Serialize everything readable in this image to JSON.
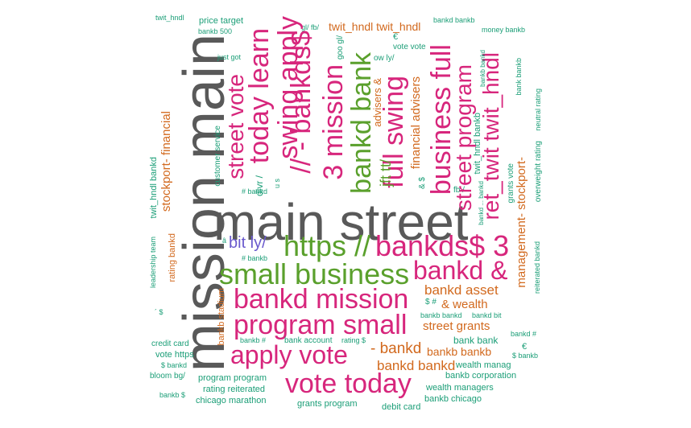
{
  "colors": {
    "gray": "#595959",
    "magenta": "#d7267c",
    "green": "#5aa02c",
    "orange": "#d2691e",
    "teal": "#1b9e77",
    "purple": "#6a5acd"
  },
  "words": [
    {
      "text": "main street",
      "color": "gray"
    },
    {
      "text": "mission main",
      "color": "gray"
    },
    {
      "text": "small business",
      "color": "green"
    },
    {
      "text": "https //",
      "color": "green"
    },
    {
      "text": "bankds$ 3",
      "color": "magenta"
    },
    {
      "text": "bankd mission",
      "color": "magenta"
    },
    {
      "text": "program small",
      "color": "magenta"
    },
    {
      "text": "apply vote",
      "color": "magenta"
    },
    {
      "text": "vote today",
      "color": "magenta"
    },
    {
      "text": "bankd &",
      "color": "magenta"
    },
    {
      "text": "bit ly/",
      "color": "purple"
    },
    {
      "text": "bankd asset",
      "color": "orange"
    },
    {
      "text": "& wealth",
      "color": "orange"
    },
    {
      "text": "street grants",
      "color": "orange"
    },
    {
      "text": "- bankd",
      "color": "orange"
    },
    {
      "text": "bankd bankd",
      "color": "orange"
    },
    {
      "text": "bankb bankb",
      "color": "orange"
    },
    {
      "text": "twit_hndl twit_hndl",
      "color": "orange"
    },
    {
      "text": "bank bank",
      "color": "teal"
    },
    {
      "text": "wealth manag",
      "color": "teal"
    },
    {
      "text": "bankb corporation",
      "color": "teal"
    },
    {
      "text": "wealth managers",
      "color": "teal"
    },
    {
      "text": "bankb chicago",
      "color": "teal"
    },
    {
      "text": "debit card",
      "color": "teal"
    },
    {
      "text": "grants program",
      "color": "teal"
    },
    {
      "text": "chicago marathon",
      "color": "teal"
    },
    {
      "text": "rating reiterated",
      "color": "teal"
    },
    {
      "text": "program program",
      "color": "teal"
    },
    {
      "text": "bloom bg/",
      "color": "teal"
    },
    {
      "text": "$ bankd",
      "color": "teal"
    },
    {
      "text": "vote https",
      "color": "teal"
    },
    {
      "text": "credit card",
      "color": "teal"
    },
    {
      "text": "bankb $",
      "color": "teal"
    },
    {
      "text": "bankb #",
      "color": "teal"
    },
    {
      "text": "bank account",
      "color": "teal"
    },
    {
      "text": "rating $",
      "color": "teal"
    },
    {
      "text": "bankb bankd",
      "color": "teal"
    },
    {
      "text": "bankd bit",
      "color": "teal"
    },
    {
      "text": "$ #",
      "color": "teal"
    },
    {
      "text": "bankd #",
      "color": "teal"
    },
    {
      "text": "$ bankb",
      "color": "teal"
    },
    {
      "text": "€ ",
      "color": "teal"
    },
    {
      "text": "twit_hndl",
      "color": "teal"
    },
    {
      "text": "price target",
      "color": "teal"
    },
    {
      "text": "bankb 500",
      "color": "teal"
    },
    {
      "text": "just got",
      "color": "teal"
    },
    {
      "text": "gl/ fb/",
      "color": "teal"
    },
    {
      "text": "bankd bankb",
      "color": "teal"
    },
    {
      "text": "money bankb",
      "color": "teal"
    },
    {
      "text": "€ ",
      "color": "teal"
    },
    {
      "text": "vote vote",
      "color": "teal"
    },
    {
      "text": "ow ly/",
      "color": "teal"
    },
    {
      "text": "# bankd",
      "color": "teal"
    },
    {
      "text": "# bankb",
      "color": "teal"
    },
    {
      "text": "fb /",
      "color": "teal"
    },
    {
      "text": "â ",
      "color": "teal"
    },
    {
      "text": "´ $",
      "color": "teal"
    },
    {
      "text": "swing apply",
      "color": "magenta",
      "v": true
    },
    {
      "text": "today learn",
      "color": "magenta",
      "v": true
    },
    {
      "text": "street vote",
      "color": "magenta",
      "v": true
    },
    {
      "text": "// - bankds$",
      "color": "magenta",
      "v": true
    },
    {
      "text": "3 mission",
      "color": "magenta",
      "v": true
    },
    {
      "text": "bankd bank",
      "color": "green",
      "v": true
    },
    {
      "text": "full swing",
      "color": "magenta",
      "v": true
    },
    {
      "text": "business full",
      "color": "magenta",
      "v": true
    },
    {
      "text": "street program",
      "color": "magenta",
      "v": true
    },
    {
      "text": "ret_twit twit_hndl",
      "color": "magenta",
      "v": true
    },
    {
      "text": "jft tt/",
      "color": "green",
      "v": true
    },
    {
      "text": "financial advisers",
      "color": "orange",
      "v": true
    },
    {
      "text": "advisers &",
      "color": "orange",
      "v": true
    },
    {
      "text": "stockport- financial",
      "color": "orange",
      "v": true
    },
    {
      "text": "management- stockport-",
      "color": "orange",
      "v": true
    },
    {
      "text": "twit_hndl bankd",
      "color": "teal",
      "v": true
    },
    {
      "text": "customer service",
      "color": "teal",
      "v": true
    },
    {
      "text": "leadership team",
      "color": "teal",
      "v": true
    },
    {
      "text": "rating bankd",
      "color": "orange",
      "v": true
    },
    {
      "text": "bankb stadium",
      "color": "orange",
      "v": true
    },
    {
      "text": "overweight rating",
      "color": "teal",
      "v": true
    },
    {
      "text": "neutral rating",
      "color": "teal",
      "v": true
    },
    {
      "text": "reiterated bankd",
      "color": "teal",
      "v": true
    },
    {
      "text": "bank bankb",
      "color": "teal",
      "v": true
    },
    {
      "text": "grants vote",
      "color": "teal",
      "v": true
    },
    {
      "text": "twit_hndl bankb",
      "color": "teal",
      "v": true
    },
    {
      "text": "bankd ... bankd",
      "color": "teal",
      "v": true
    },
    {
      "text": "goo gl/",
      "color": "teal",
      "v": true
    },
    {
      "text": "dlvr /",
      "color": "teal",
      "v": true
    },
    {
      "text": "& $",
      "color": "teal",
      "v": true
    },
    {
      "text": "u s",
      "color": "teal",
      "v": true
    },
    {
      "text": "bankb bankd",
      "color": "teal",
      "v": true
    }
  ]
}
